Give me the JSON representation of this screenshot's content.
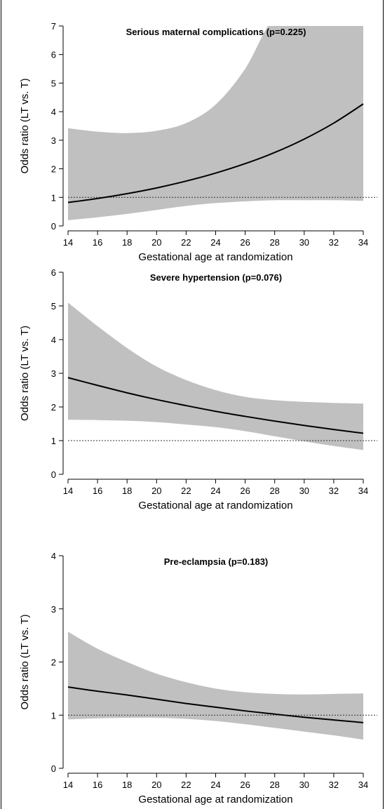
{
  "chart_data": [
    {
      "type": "line",
      "title": "Serious maternal complications (p=0.225)",
      "xlabel": "Gestational age at randomization",
      "ylabel": "Odds ratio (LT vs. T)",
      "xlim": [
        14,
        34
      ],
      "ylim": [
        0,
        7
      ],
      "xticks": [
        "14",
        "16",
        "18",
        "20",
        "22",
        "24",
        "26",
        "28",
        "30",
        "32",
        "34"
      ],
      "yticks": [
        "0",
        "1",
        "2",
        "3",
        "4",
        "5",
        "6",
        "7"
      ],
      "reference_line": 1,
      "x": [
        14,
        16,
        18,
        20,
        22,
        24,
        26,
        28,
        30,
        32,
        34
      ],
      "series": [
        {
          "role": "estimate",
          "values": [
            0.82,
            0.96,
            1.13,
            1.33,
            1.57,
            1.85,
            2.18,
            2.57,
            3.04,
            3.6,
            4.27
          ]
        },
        {
          "role": "ci_lower",
          "values": [
            0.2,
            0.3,
            0.42,
            0.56,
            0.7,
            0.8,
            0.86,
            0.9,
            0.9,
            0.9,
            0.88
          ]
        },
        {
          "role": "ci_upper",
          "values": [
            3.42,
            3.3,
            3.25,
            3.33,
            3.6,
            4.25,
            5.5,
            7.3,
            7.3,
            7.3,
            7.3
          ]
        }
      ]
    },
    {
      "type": "line",
      "title": "Severe hypertension (p=0.076)",
      "xlabel": "Gestational age at randomization",
      "ylabel": "Odds ratio (LT vs. T)",
      "xlim": [
        14,
        34
      ],
      "ylim": [
        0,
        6
      ],
      "xticks": [
        "14",
        "16",
        "18",
        "20",
        "22",
        "24",
        "26",
        "28",
        "30",
        "32",
        "34"
      ],
      "yticks": [
        "0",
        "1",
        "2",
        "3",
        "4",
        "5",
        "6"
      ],
      "reference_line": 1,
      "x": [
        14,
        16,
        18,
        20,
        22,
        24,
        26,
        28,
        30,
        32,
        34
      ],
      "series": [
        {
          "role": "estimate",
          "values": [
            2.87,
            2.64,
            2.42,
            2.22,
            2.04,
            1.87,
            1.72,
            1.58,
            1.45,
            1.33,
            1.22
          ]
        },
        {
          "role": "ci_lower",
          "values": [
            1.62,
            1.61,
            1.59,
            1.55,
            1.48,
            1.4,
            1.28,
            1.13,
            0.98,
            0.84,
            0.72
          ]
        },
        {
          "role": "ci_upper",
          "values": [
            5.1,
            4.4,
            3.75,
            3.2,
            2.8,
            2.5,
            2.3,
            2.2,
            2.15,
            2.12,
            2.1
          ]
        }
      ]
    },
    {
      "type": "line",
      "title": "Pre-eclampsia (p=0.183)",
      "xlabel": "Gestational age at randomization",
      "ylabel": "Odds ratio (LT vs. T)",
      "xlim": [
        14,
        34
      ],
      "ylim": [
        0,
        4
      ],
      "xticks": [
        "14",
        "16",
        "18",
        "20",
        "22",
        "24",
        "26",
        "28",
        "30",
        "32",
        "34"
      ],
      "yticks": [
        "0",
        "1",
        "2",
        "3",
        "4"
      ],
      "reference_line": 1,
      "x": [
        14,
        16,
        18,
        20,
        22,
        24,
        26,
        28,
        30,
        32,
        34
      ],
      "series": [
        {
          "role": "estimate",
          "values": [
            1.53,
            1.45,
            1.38,
            1.3,
            1.22,
            1.15,
            1.08,
            1.02,
            0.96,
            0.91,
            0.86
          ]
        },
        {
          "role": "ci_lower",
          "values": [
            0.92,
            0.94,
            0.95,
            0.95,
            0.93,
            0.89,
            0.83,
            0.76,
            0.69,
            0.62,
            0.54
          ]
        },
        {
          "role": "ci_upper",
          "values": [
            2.57,
            2.25,
            2.0,
            1.78,
            1.62,
            1.5,
            1.43,
            1.4,
            1.39,
            1.4,
            1.41
          ]
        }
      ]
    }
  ]
}
